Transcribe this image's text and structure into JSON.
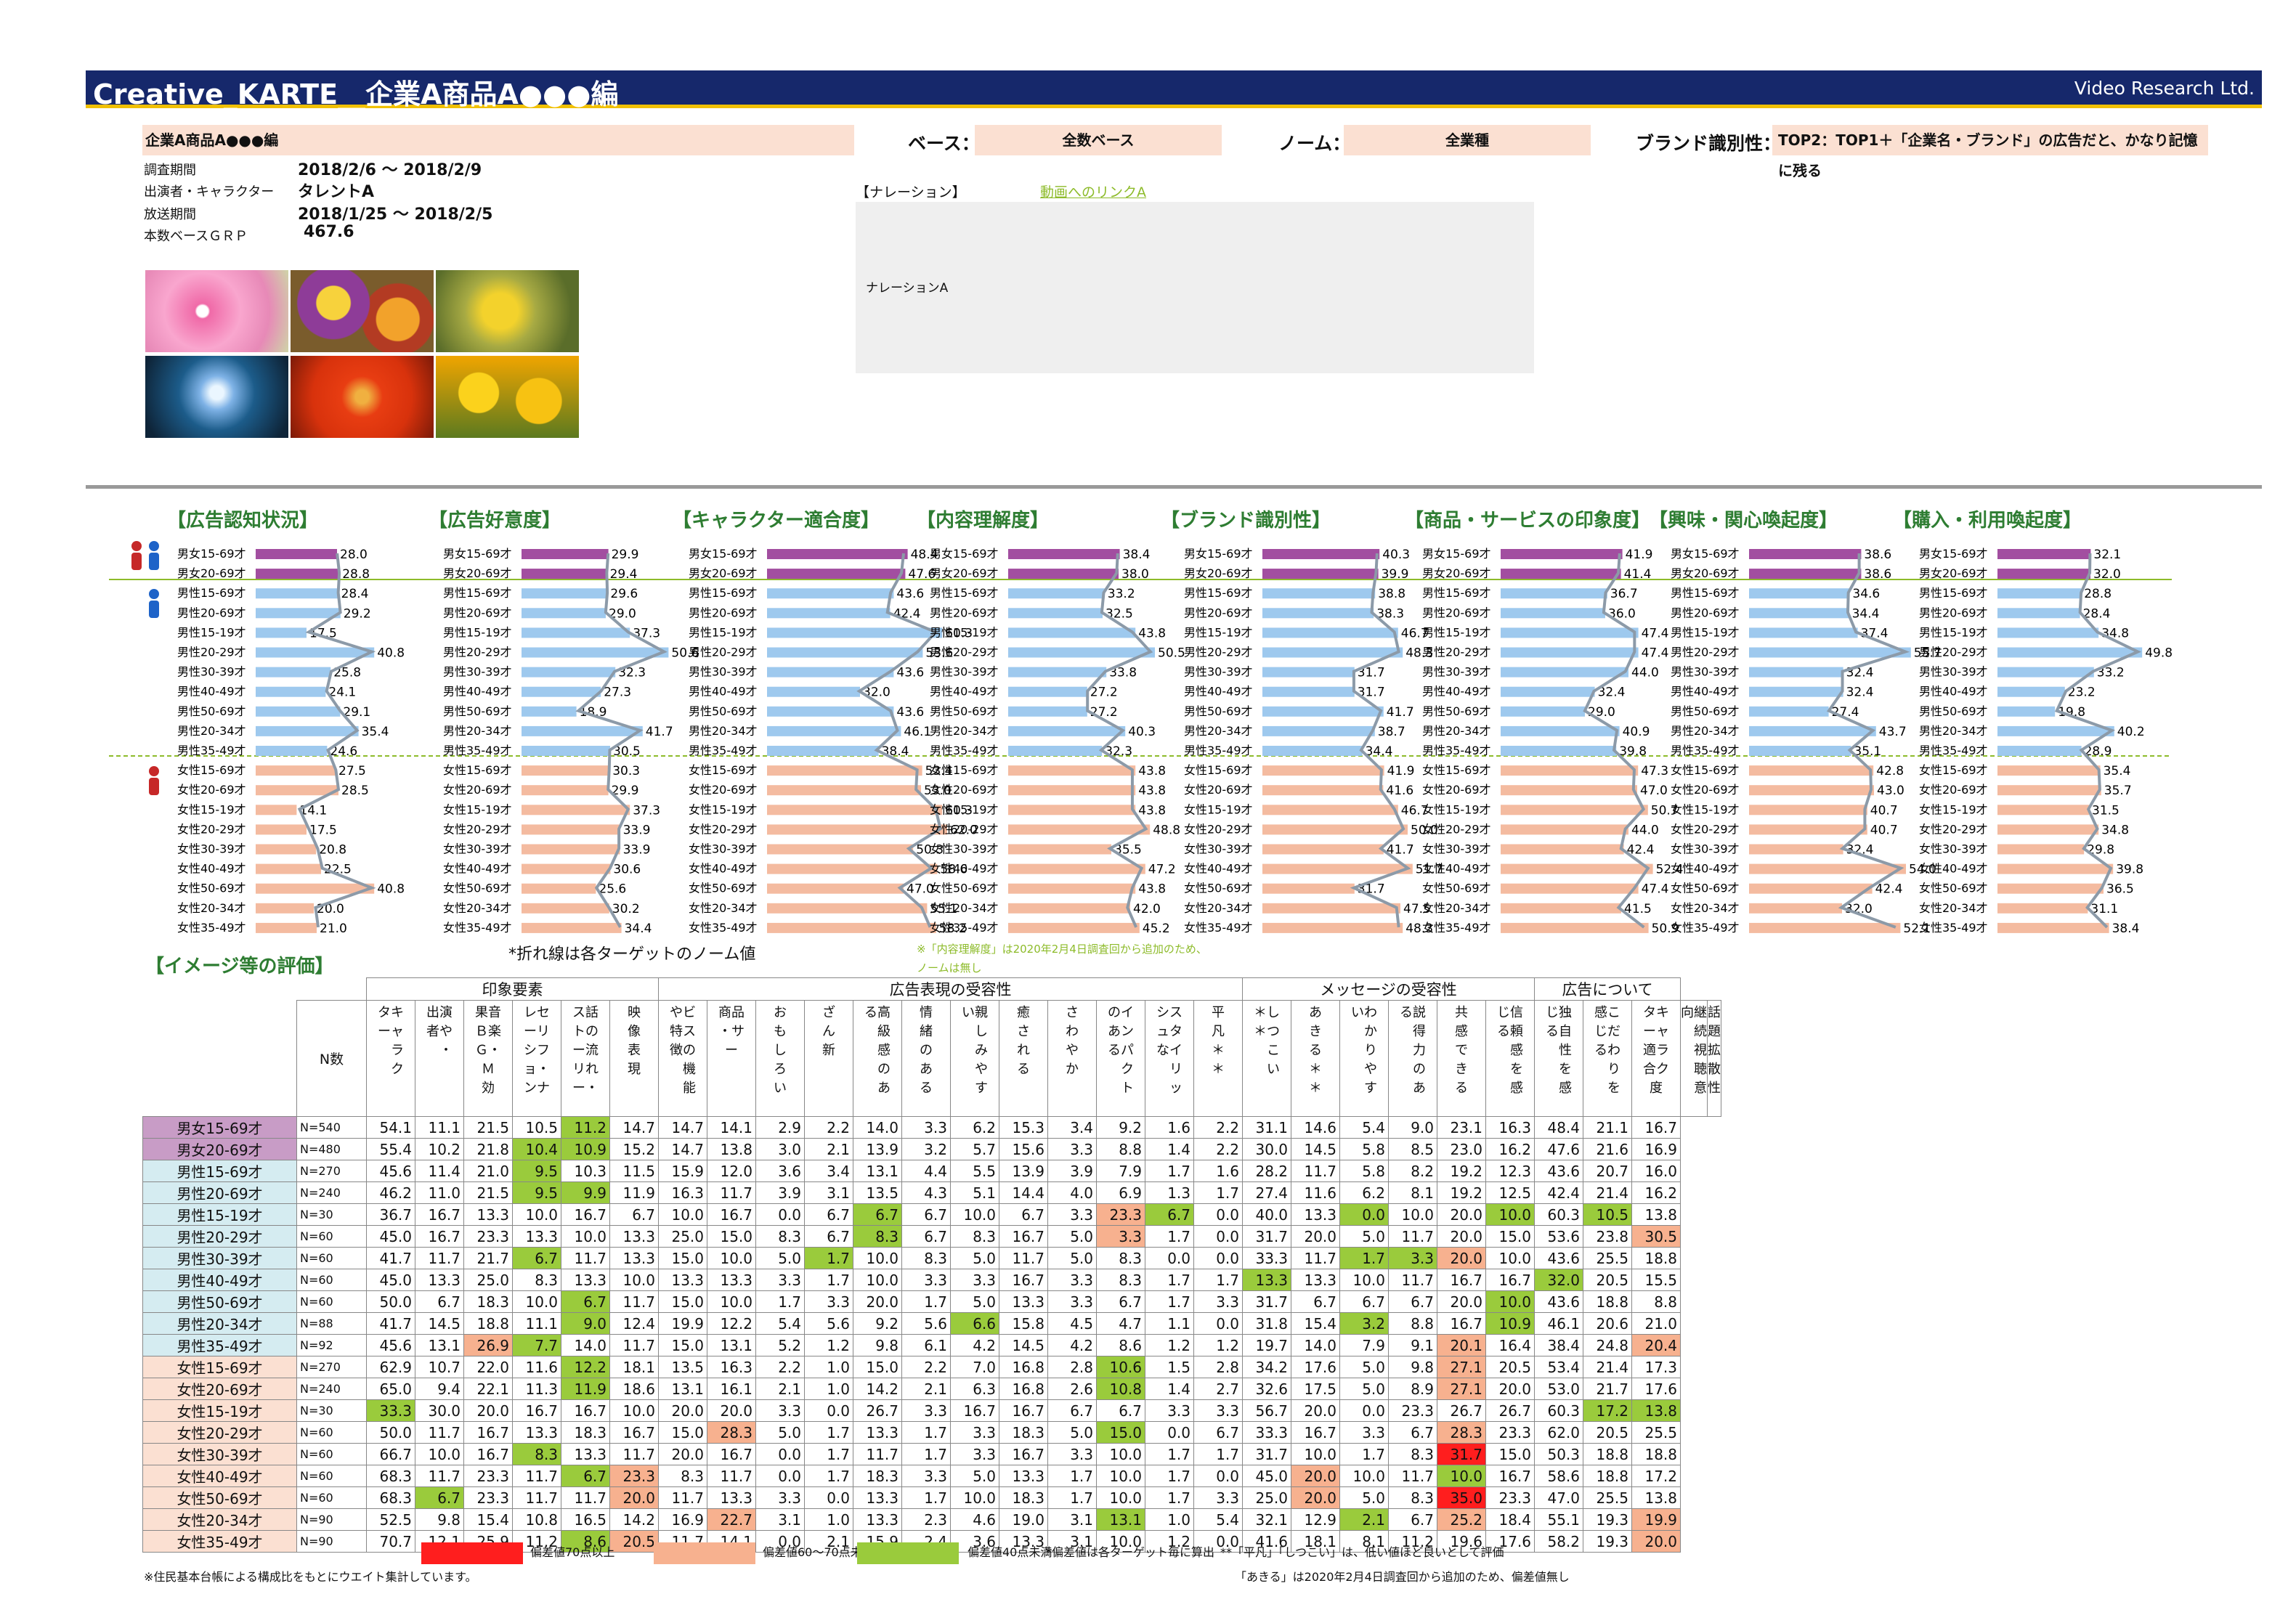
{
  "header": {
    "title": "Creative_KARTE__企業A商品A●●●編",
    "company": "Video Research Ltd."
  },
  "top": {
    "cm_name": "企業A商品A●●●編",
    "base_label": "ベース：",
    "base_value": "全数ベース",
    "norm_label": "ノーム：",
    "norm_value": "全業種",
    "brand_label": "ブランド識別性：",
    "brand_value": "TOP2：TOP1＋「企業名・ブランド」の広告だと、かなり記憶に残る"
  },
  "info": [
    {
      "k": "調査期間",
      "v": "2018/2/6 ～ 2018/2/9"
    },
    {
      "k": "出演者・キャラクター",
      "v": "タレントA"
    },
    {
      "k": "放送期間",
      "v": "2018/1/25 ～ 2018/2/5"
    },
    {
      "k": "本数ベースＧＲＰ",
      "v": "467.6"
    }
  ],
  "narration": {
    "label": "【ナレーション】",
    "link": "動画へのリンクA",
    "text": "ナレーションA"
  },
  "row_labels": [
    "男女15-69才",
    "男女20-69才",
    "男性15-69才",
    "男性20-69才",
    "男性15-19才",
    "男性20-29才",
    "男性30-39才",
    "男性40-49才",
    "男性50-69才",
    "男性20-34才",
    "男性35-49才",
    "女性15-69才",
    "女性20-69才",
    "女性15-19才",
    "女性20-29才",
    "女性30-39才",
    "女性40-49才",
    "女性50-69才",
    "女性20-34才",
    "女性35-49才"
  ],
  "chart_data": {
    "type": "bar",
    "categories": [
      "男女15-69才",
      "男女20-69才",
      "男性15-69才",
      "男性20-69才",
      "男性15-19才",
      "男性20-29才",
      "男性30-39才",
      "男性40-49才",
      "男性50-69才",
      "男性20-34才",
      "男性35-49才",
      "女性15-69才",
      "女性20-69才",
      "女性15-19才",
      "女性20-29才",
      "女性30-39才",
      "女性40-49才",
      "女性50-69才",
      "女性20-34才",
      "女性35-49才"
    ],
    "series": [
      {
        "name": "【広告認知状況】",
        "values": [
          28.0,
          28.8,
          28.4,
          29.2,
          17.5,
          40.8,
          25.8,
          24.1,
          29.1,
          35.4,
          24.6,
          27.5,
          28.5,
          14.1,
          17.5,
          20.8,
          22.5,
          40.8,
          20.0,
          21.0
        ]
      },
      {
        "name": "【広告好意度】",
        "values": [
          29.9,
          29.4,
          29.6,
          29.0,
          37.3,
          50.6,
          32.3,
          27.3,
          18.9,
          41.7,
          30.5,
          30.3,
          29.9,
          37.3,
          33.9,
          33.9,
          30.6,
          25.6,
          30.2,
          34.4
        ]
      },
      {
        "name": "【キャラクター適合度】",
        "values": [
          48.4,
          47.6,
          43.6,
          42.4,
          60.3,
          53.6,
          43.6,
          32.0,
          43.6,
          46.1,
          38.4,
          53.4,
          53.0,
          60.3,
          62.0,
          50.3,
          58.6,
          47.0,
          55.1,
          58.2
        ]
      },
      {
        "name": "【内容理解度】",
        "values": [
          38.4,
          38.0,
          33.2,
          32.5,
          43.8,
          50.5,
          33.8,
          27.2,
          27.2,
          40.3,
          32.3,
          43.8,
          43.8,
          43.8,
          48.8,
          35.5,
          47.2,
          43.8,
          42.0,
          45.2
        ]
      },
      {
        "name": "【ブランド識別性】",
        "values": [
          40.3,
          39.9,
          38.8,
          38.3,
          46.7,
          48.3,
          31.7,
          31.7,
          41.7,
          38.7,
          34.4,
          41.9,
          41.6,
          46.7,
          50.0,
          41.7,
          51.7,
          31.7,
          47.5,
          48.3
        ]
      },
      {
        "name": "【商品・サービスの印象度】",
        "values": [
          41.9,
          41.4,
          36.7,
          36.0,
          47.4,
          47.4,
          44.0,
          32.4,
          29.0,
          40.9,
          39.8,
          47.3,
          47.0,
          50.7,
          44.0,
          42.4,
          52.4,
          47.4,
          41.5,
          50.9
        ]
      },
      {
        "name": "【興味・関心喚起度】",
        "values": [
          38.6,
          38.6,
          34.6,
          34.4,
          37.4,
          55.7,
          32.4,
          32.4,
          27.4,
          43.7,
          35.1,
          42.8,
          43.0,
          40.7,
          40.7,
          32.4,
          54.0,
          42.4,
          32.0,
          52.1
        ]
      },
      {
        "name": "【購入・利用喚起度】",
        "values": [
          32.1,
          32.0,
          28.8,
          28.4,
          34.8,
          49.8,
          33.2,
          23.2,
          19.8,
          40.2,
          28.9,
          35.4,
          35.7,
          31.5,
          34.8,
          29.8,
          39.8,
          36.5,
          31.1,
          38.4
        ]
      }
    ],
    "xlim": [
      0,
      100
    ]
  },
  "chart_note": "*折れ線は各ターゲットのノーム値",
  "chart_note2": [
    "※「内容理解度」は2020年2月4日調査回から追加のため、",
    "ノームは無し"
  ],
  "image_eval": {
    "title": "【イメージ等の評価】",
    "n_header": "N数",
    "groups": [
      {
        "label": "印象要素",
        "span": 6
      },
      {
        "label": "広告表現の受容性",
        "span": 12
      },
      {
        "label": "メッセージの受容性",
        "span": 6
      },
      {
        "label": "広告について",
        "span": 3
      }
    ],
    "columns": [
      "タキ\nーャ\n　ラ\n　ク",
      "出演\n者や\n　・",
      "果音\nＢ楽\nＧ・\nＭ\n効",
      "レセ\nーリ\nシフ\nョ・\nンナ",
      "ス話\nトの\nー流\nリれ\nー・",
      "映\n像\n表\n現",
      "やビ\n特ス\n徴の\n　機\n　能",
      "商品\n・サ\nー",
      "お\nも\nし\nろ\nい",
      "ざ\nん\n新",
      "る高\n　級\n　感\n　の\n　あ",
      "情\n緒\nの\nあ\nる",
      "い親\n　し\n　み\n　や\n　す",
      "癒\nさ\nれ\nる",
      "さ\nわ\nや\nか",
      "のイ\nあン\nるパ\n　ク\n　ト",
      "シス\nュタ\nなイ\n　リ\n　ッ",
      "平\n凡\n＊\n＊",
      "＊し\n＊つ\n　こ\n　い",
      "あ\nき\nる\n＊\n＊",
      "いわ\n　か\n　り\n　や\n　す",
      "る説\n　得\n　力\n　の\n　あ",
      "共\n感\nで\nき\nる",
      "じ信\nる頼\n　感\n　を\n　感",
      "じ独\nる自\n　性\n　を\n　感",
      "感こ\nじだ\nるわ\n　り\n　を",
      "タキ\nーャ\n適ラ\n合ク\n度",
      "向継\n　続\n　視\n　聴\n　意",
      "話\n題\n拡\n散\n性"
    ],
    "rows": [
      {
        "label": "男女15-69才",
        "n": "N=540",
        "v": [
          "54.1",
          "11.1",
          "21.5",
          "10.5",
          "11.2",
          "14.7",
          "14.7",
          "14.1",
          "2.9",
          "2.2",
          "14.0",
          "3.3",
          "6.2",
          "15.3",
          "3.4",
          "9.2",
          "1.6",
          "2.2",
          "31.1",
          "14.6",
          "5.4",
          "9.0",
          "23.1",
          "16.3",
          "48.4",
          "21.1",
          "16.7"
        ]
      },
      {
        "label": "男女20-69才",
        "n": "N=480",
        "v": [
          "55.4",
          "10.2",
          "21.8",
          "10.4",
          "10.9",
          "15.2",
          "14.7",
          "13.8",
          "3.0",
          "2.1",
          "13.9",
          "3.2",
          "5.7",
          "15.6",
          "3.3",
          "8.8",
          "1.4",
          "2.2",
          "30.0",
          "14.5",
          "5.8",
          "8.5",
          "23.0",
          "16.2",
          "47.6",
          "21.6",
          "16.9"
        ]
      },
      {
        "label": "男性15-69才",
        "n": "N=270",
        "v": [
          "45.6",
          "11.4",
          "21.0",
          "9.5",
          "10.3",
          "11.5",
          "15.9",
          "12.0",
          "3.6",
          "3.4",
          "13.1",
          "4.4",
          "5.5",
          "13.9",
          "3.9",
          "7.9",
          "1.7",
          "1.6",
          "28.2",
          "11.7",
          "5.8",
          "8.2",
          "19.2",
          "12.3",
          "43.6",
          "20.7",
          "16.0"
        ]
      },
      {
        "label": "男性20-69才",
        "n": "N=240",
        "v": [
          "46.2",
          "11.0",
          "21.5",
          "9.5",
          "9.9",
          "11.9",
          "16.3",
          "11.7",
          "3.9",
          "3.1",
          "13.5",
          "4.3",
          "5.1",
          "14.4",
          "4.0",
          "6.9",
          "1.3",
          "1.7",
          "27.4",
          "11.6",
          "6.2",
          "8.1",
          "19.2",
          "12.5",
          "42.4",
          "21.4",
          "16.2"
        ]
      },
      {
        "label": "男性15-19才",
        "n": "N=30",
        "v": [
          "36.7",
          "16.7",
          "13.3",
          "10.0",
          "16.7",
          "6.7",
          "10.0",
          "16.7",
          "0.0",
          "6.7",
          "6.7",
          "6.7",
          "10.0",
          "6.7",
          "3.3",
          "23.3",
          "6.7",
          "0.0",
          "40.0",
          "13.3",
          "0.0",
          "10.0",
          "20.0",
          "10.0",
          "60.3",
          "10.5",
          "13.8"
        ]
      },
      {
        "label": "男性20-29才",
        "n": "N=60",
        "v": [
          "45.0",
          "16.7",
          "23.3",
          "13.3",
          "10.0",
          "13.3",
          "25.0",
          "15.0",
          "8.3",
          "6.7",
          "8.3",
          "6.7",
          "8.3",
          "16.7",
          "5.0",
          "3.3",
          "1.7",
          "0.0",
          "31.7",
          "20.0",
          "5.0",
          "11.7",
          "20.0",
          "15.0",
          "53.6",
          "23.8",
          "30.5"
        ]
      },
      {
        "label": "男性30-39才",
        "n": "N=60",
        "v": [
          "41.7",
          "11.7",
          "21.7",
          "6.7",
          "11.7",
          "13.3",
          "15.0",
          "10.0",
          "5.0",
          "1.7",
          "10.0",
          "8.3",
          "5.0",
          "11.7",
          "5.0",
          "8.3",
          "0.0",
          "0.0",
          "33.3",
          "11.7",
          "1.7",
          "3.3",
          "20.0",
          "10.0",
          "43.6",
          "25.5",
          "18.8"
        ]
      },
      {
        "label": "男性40-49才",
        "n": "N=60",
        "v": [
          "45.0",
          "13.3",
          "25.0",
          "8.3",
          "13.3",
          "10.0",
          "13.3",
          "13.3",
          "3.3",
          "1.7",
          "10.0",
          "3.3",
          "3.3",
          "16.7",
          "3.3",
          "8.3",
          "1.7",
          "1.7",
          "13.3",
          "13.3",
          "10.0",
          "11.7",
          "16.7",
          "16.7",
          "32.0",
          "20.5",
          "15.5"
        ]
      },
      {
        "label": "男性50-69才",
        "n": "N=60",
        "v": [
          "50.0",
          "6.7",
          "18.3",
          "10.0",
          "6.7",
          "11.7",
          "15.0",
          "10.0",
          "1.7",
          "3.3",
          "20.0",
          "1.7",
          "5.0",
          "13.3",
          "3.3",
          "6.7",
          "1.7",
          "3.3",
          "31.7",
          "6.7",
          "6.7",
          "6.7",
          "20.0",
          "10.0",
          "43.6",
          "18.8",
          "8.8"
        ]
      },
      {
        "label": "男性20-34才",
        "n": "N=88",
        "v": [
          "41.7",
          "14.5",
          "18.8",
          "11.1",
          "9.0",
          "12.4",
          "19.9",
          "12.2",
          "5.4",
          "5.6",
          "9.2",
          "5.6",
          "6.6",
          "15.8",
          "4.5",
          "4.7",
          "1.1",
          "0.0",
          "31.8",
          "15.4",
          "3.2",
          "8.8",
          "16.7",
          "10.9",
          "46.1",
          "20.6",
          "21.0"
        ]
      },
      {
        "label": "男性35-49才",
        "n": "N=92",
        "v": [
          "45.6",
          "13.1",
          "26.9",
          "7.7",
          "14.0",
          "11.7",
          "15.0",
          "13.1",
          "5.2",
          "1.2",
          "9.8",
          "6.1",
          "4.2",
          "14.5",
          "4.2",
          "8.6",
          "1.2",
          "1.2",
          "19.7",
          "14.0",
          "7.9",
          "9.1",
          "20.1",
          "16.4",
          "38.4",
          "24.8",
          "20.4"
        ]
      },
      {
        "label": "女性15-69才",
        "n": "N=270",
        "v": [
          "62.9",
          "10.7",
          "22.0",
          "11.6",
          "12.2",
          "18.1",
          "13.5",
          "16.3",
          "2.2",
          "1.0",
          "15.0",
          "2.2",
          "7.0",
          "16.8",
          "2.8",
          "10.6",
          "1.5",
          "2.8",
          "34.2",
          "17.6",
          "5.0",
          "9.8",
          "27.1",
          "20.5",
          "53.4",
          "21.4",
          "17.3"
        ]
      },
      {
        "label": "女性20-69才",
        "n": "N=240",
        "v": [
          "65.0",
          "9.4",
          "22.1",
          "11.3",
          "11.9",
          "18.6",
          "13.1",
          "16.1",
          "2.1",
          "1.0",
          "14.2",
          "2.1",
          "6.3",
          "16.8",
          "2.6",
          "10.8",
          "1.4",
          "2.7",
          "32.6",
          "17.5",
          "5.0",
          "8.9",
          "27.1",
          "20.0",
          "53.0",
          "21.7",
          "17.6"
        ]
      },
      {
        "label": "女性15-19才",
        "n": "N=30",
        "v": [
          "33.3",
          "30.0",
          "20.0",
          "16.7",
          "16.7",
          "10.0",
          "20.0",
          "20.0",
          "3.3",
          "0.0",
          "26.7",
          "3.3",
          "16.7",
          "16.7",
          "6.7",
          "6.7",
          "3.3",
          "3.3",
          "56.7",
          "20.0",
          "0.0",
          "23.3",
          "26.7",
          "26.7",
          "60.3",
          "17.2",
          "13.8"
        ]
      },
      {
        "label": "女性20-29才",
        "n": "N=60",
        "v": [
          "50.0",
          "11.7",
          "16.7",
          "13.3",
          "18.3",
          "16.7",
          "15.0",
          "28.3",
          "5.0",
          "1.7",
          "13.3",
          "1.7",
          "3.3",
          "18.3",
          "5.0",
          "15.0",
          "0.0",
          "6.7",
          "33.3",
          "16.7",
          "3.3",
          "6.7",
          "28.3",
          "23.3",
          "62.0",
          "20.5",
          "25.5"
        ]
      },
      {
        "label": "女性30-39才",
        "n": "N=60",
        "v": [
          "66.7",
          "10.0",
          "16.7",
          "8.3",
          "13.3",
          "11.7",
          "20.0",
          "16.7",
          "0.0",
          "1.7",
          "11.7",
          "1.7",
          "3.3",
          "16.7",
          "3.3",
          "10.0",
          "1.7",
          "1.7",
          "31.7",
          "10.0",
          "1.7",
          "8.3",
          "31.7",
          "15.0",
          "50.3",
          "18.8",
          "18.8"
        ]
      },
      {
        "label": "女性40-49才",
        "n": "N=60",
        "v": [
          "68.3",
          "11.7",
          "23.3",
          "11.7",
          "6.7",
          "23.3",
          "8.3",
          "11.7",
          "0.0",
          "1.7",
          "18.3",
          "3.3",
          "5.0",
          "13.3",
          "1.7",
          "10.0",
          "1.7",
          "0.0",
          "45.0",
          "20.0",
          "10.0",
          "11.7",
          "10.0",
          "16.7",
          "58.6",
          "18.8",
          "17.2"
        ]
      },
      {
        "label": "女性50-69才",
        "n": "N=60",
        "v": [
          "68.3",
          "6.7",
          "23.3",
          "11.7",
          "11.7",
          "20.0",
          "11.7",
          "13.3",
          "3.3",
          "0.0",
          "13.3",
          "1.7",
          "10.0",
          "18.3",
          "1.7",
          "10.0",
          "1.7",
          "3.3",
          "25.0",
          "20.0",
          "5.0",
          "8.3",
          "35.0",
          "23.3",
          "47.0",
          "25.5",
          "13.8"
        ]
      },
      {
        "label": "女性20-34才",
        "n": "N=90",
        "v": [
          "52.5",
          "9.8",
          "15.4",
          "10.8",
          "16.5",
          "14.2",
          "16.9",
          "22.7",
          "3.1",
          "1.0",
          "13.3",
          "2.3",
          "4.6",
          "19.0",
          "3.1",
          "13.1",
          "1.0",
          "5.4",
          "32.1",
          "12.9",
          "2.1",
          "6.7",
          "25.2",
          "18.4",
          "55.1",
          "19.3",
          "19.9"
        ]
      },
      {
        "label": "女性35-49才",
        "n": "N=90",
        "v": [
          "70.7",
          "12.1",
          "25.9",
          "11.2",
          "8.6",
          "20.5",
          "11.7",
          "14.1",
          "0.0",
          "2.1",
          "15.9",
          "2.4",
          "3.6",
          "13.3",
          "3.1",
          "10.0",
          "1.2",
          "0.0",
          "41.6",
          "18.1",
          "8.1",
          "11.2",
          "19.6",
          "17.6",
          "58.2",
          "19.3",
          "20.0"
        ]
      }
    ]
  },
  "legend": {
    "red": "偏差値70点以上",
    "orange": "偏差値60～70点未満",
    "green": "偏差値40点未満",
    "star": "*偏差値は各ターゲット毎に算出",
    "star2": "**「平凡」「しつこい」は、低い値ほど良いとして評価",
    "akiru": "「あきる」は2020年2月4日調査回から追加のため、偏差値無し",
    "footnote": "※住民基本台帳による構成比をもとにウエイト集計しています。"
  },
  "colors": {
    "navy": "#16286b",
    "gold": "#f0c000",
    "purple": "#a24ea0",
    "blue": "#9ec9ee",
    "salmon": "#f4bba0",
    "red": "#ff1e1e",
    "orange": "#f7b18f",
    "green": "#9acb3c"
  }
}
